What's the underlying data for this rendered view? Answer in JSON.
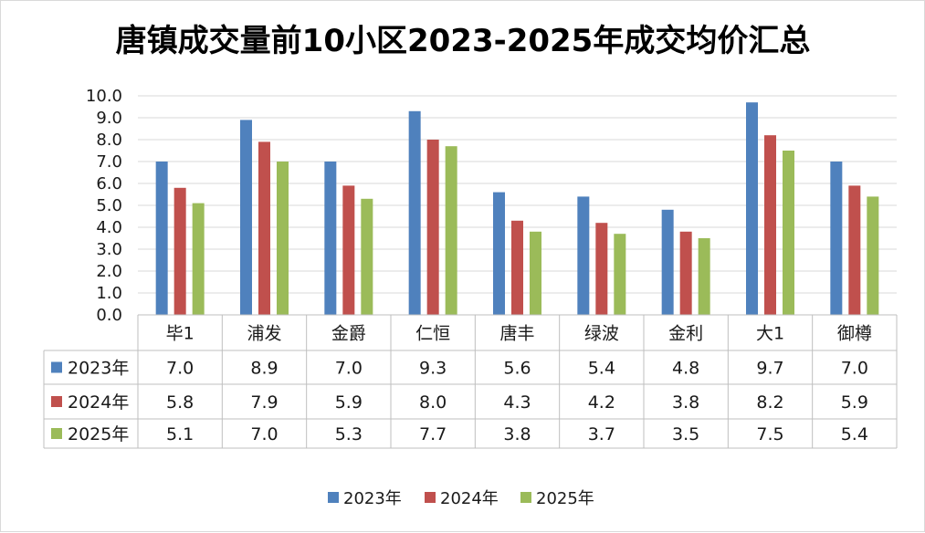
{
  "chart_data": {
    "type": "bar",
    "title": "唐镇成交量前10小区2023-2025年成交均价汇总",
    "categories": [
      "毕1",
      "浦发",
      "金爵",
      "仁恒",
      "唐丰",
      "绿波",
      "金利",
      "大1",
      "御樽"
    ],
    "series": [
      {
        "name": "2023年",
        "color": "#4f81bd",
        "values": [
          7.0,
          8.9,
          7.0,
          9.3,
          5.6,
          5.4,
          4.8,
          9.7,
          7.0
        ]
      },
      {
        "name": "2024年",
        "color": "#c0504d",
        "values": [
          5.8,
          7.9,
          5.9,
          8.0,
          4.3,
          4.2,
          3.8,
          8.2,
          5.9
        ]
      },
      {
        "name": "2025年",
        "color": "#9bbb59",
        "values": [
          5.1,
          7.0,
          5.3,
          7.7,
          3.8,
          3.7,
          3.5,
          7.5,
          5.4
        ]
      }
    ],
    "y_ticks": [
      "0.0",
      "1.0",
      "2.0",
      "3.0",
      "4.0",
      "5.0",
      "6.0",
      "7.0",
      "8.0",
      "9.0",
      "10.0"
    ],
    "ylim": [
      0,
      10
    ],
    "grid": true,
    "data_table": true,
    "legend_position": "bottom"
  }
}
